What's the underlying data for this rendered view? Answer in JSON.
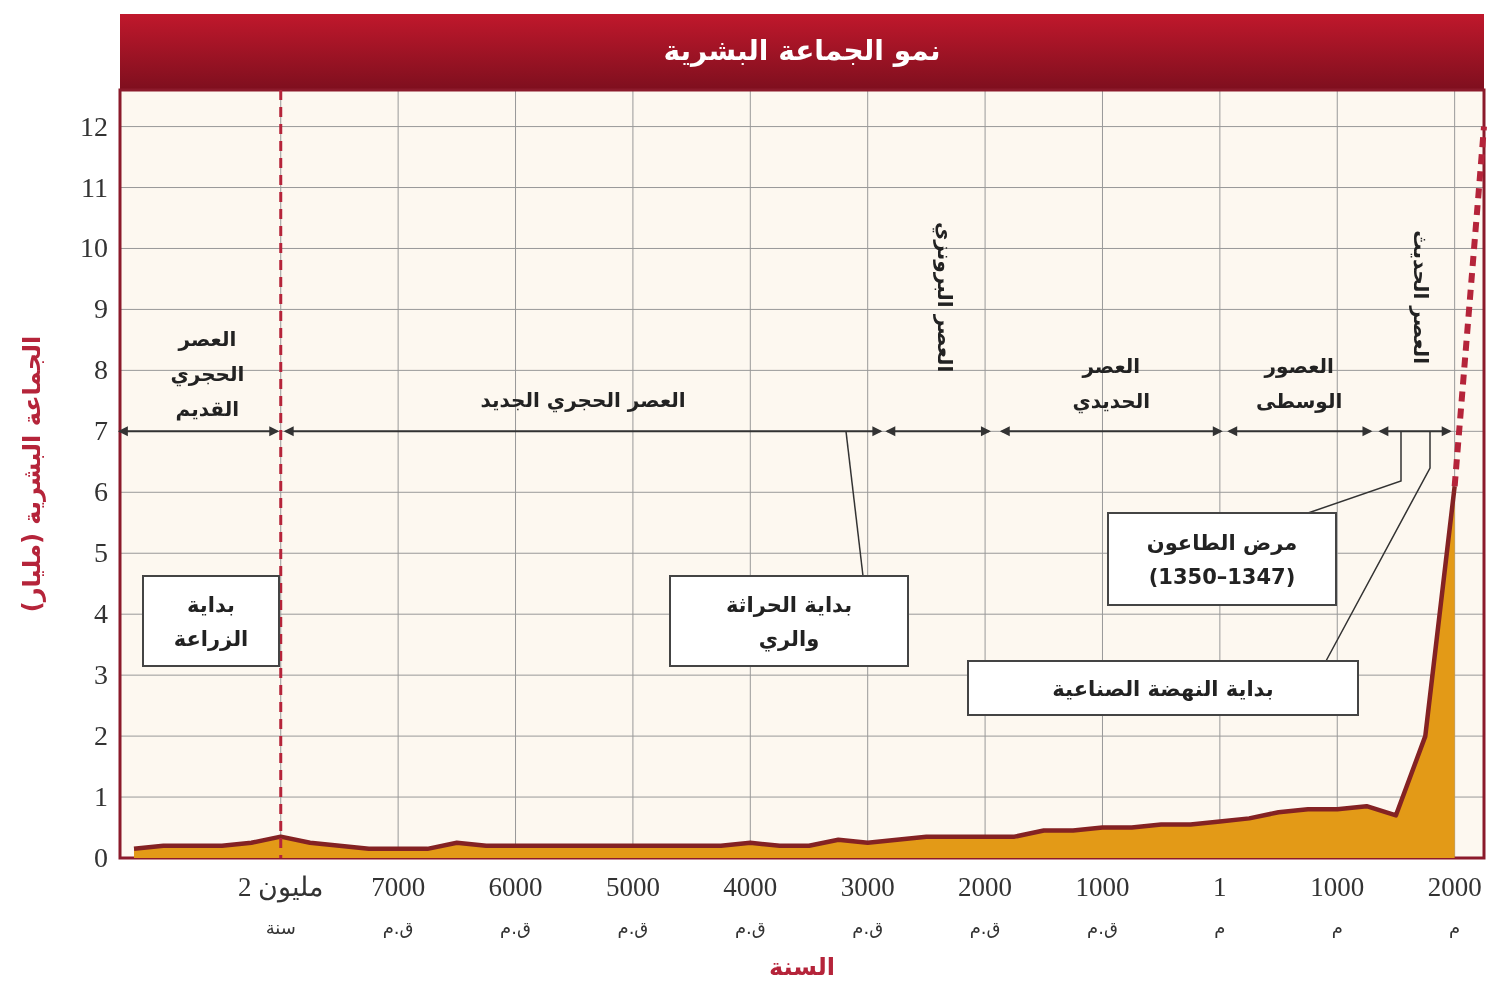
{
  "chart_data": {
    "type": "area",
    "title": "نمو الجماعة البشرية",
    "xlabel": "السنة",
    "ylabel": "الجماعة البشرية (مليار)",
    "categories": [
      null,
      null,
      null,
      null,
      null,
      "2 مليون\nسنة",
      null,
      null,
      null,
      "7000\nق.م",
      null,
      null,
      null,
      "6000\nق.م",
      null,
      null,
      null,
      "5000\nق.م",
      null,
      null,
      null,
      "4000\nق.م",
      null,
      null,
      null,
      "3000\nق.م",
      null,
      null,
      null,
      "2000\nق.م",
      null,
      null,
      null,
      "1000\nق.م",
      null,
      null,
      null,
      "1\nم",
      null,
      null,
      null,
      "1000\nم",
      null,
      null,
      null,
      "2000\nم",
      null
    ],
    "series": [
      {
        "color": "#e39a17",
        "values": [
          0.15,
          0.2,
          0.2,
          0.2,
          0.25,
          0.35,
          0.25,
          0.2,
          0.15,
          0.15,
          0.15,
          0.25,
          0.2,
          0.2,
          0.2,
          0.2,
          0.2,
          0.2,
          0.2,
          0.2,
          0.2,
          0.25,
          0.2,
          0.2,
          0.3,
          0.25,
          0.3,
          0.35,
          0.35,
          0.35,
          0.35,
          0.45,
          0.45,
          0.5,
          0.5,
          0.55,
          0.55,
          0.6,
          0.65,
          0.75,
          0.8,
          0.8,
          0.85,
          0.7,
          2,
          6.1,
          null
        ]
      },
      {
        "type": "line",
        "color": "#b5243a",
        "line_style": "dashed",
        "values": [
          null,
          null,
          null,
          null,
          null,
          null,
          null,
          null,
          null,
          null,
          null,
          null,
          null,
          null,
          null,
          null,
          null,
          null,
          null,
          null,
          null,
          null,
          null,
          null,
          null,
          null,
          null,
          null,
          null,
          null,
          null,
          null,
          null,
          null,
          null,
          null,
          null,
          null,
          null,
          null,
          null,
          null,
          null,
          null,
          null,
          6.1,
          12
        ]
      }
    ],
    "ylim": [
      0,
      12.6
    ],
    "yticks": [
      0,
      1,
      2,
      3,
      4,
      5,
      6,
      7,
      8,
      9,
      10,
      11,
      12
    ],
    "grid": true,
    "ref_lines": [
      {
        "axis": "x",
        "value": "2 مليون\nسنة",
        "color": "#b5243a",
        "line_style": "dashed"
      }
    ],
    "annotations": [
      "العصر\nالحجري\nالقديم",
      "العصر الحجري الجديد",
      "العصر البرونزي",
      "العصر\nالحديدي",
      "العصور\nالوسطى",
      "العصر الحديث",
      "بداية\nالزراعة",
      "بداية الحراثة\nوالري",
      "مرض الطاعون\n(1350–1347)",
      "بداية النهضة الصناعية"
    ]
  }
}
